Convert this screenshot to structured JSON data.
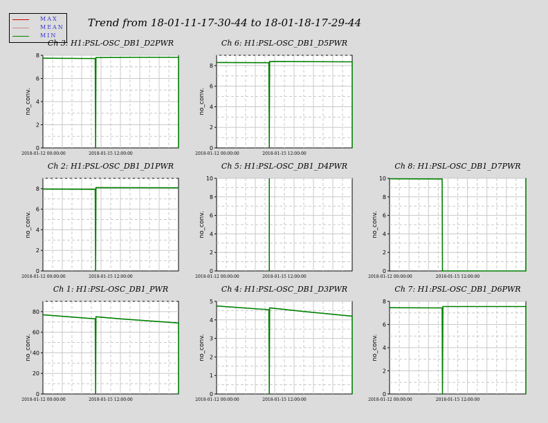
{
  "title": "Trend from 18-01-11-17-30-44 to 18-01-18-17-29-44",
  "legend": [
    {
      "label": "MAX",
      "color": "#cc0000"
    },
    {
      "label": "MEAN",
      "color": "#cc8888"
    },
    {
      "label": "MIN",
      "color": "#008000"
    }
  ],
  "colors": {
    "background": "#dcdcdc",
    "plot_bg": "#ffffff",
    "min_line": "#008000",
    "max_line": "#cc0000",
    "grid": "#c8c8c8"
  },
  "chart_data": [
    {
      "type": "line",
      "title": "Ch 3: H1:PSL-OSC_DB1_D2PWR",
      "ylabel": "no_conv.",
      "ylim": [
        0,
        8
      ],
      "yticks": [
        0,
        2,
        4,
        6,
        8
      ],
      "xticks": [
        "2018-01-12 00:00:00",
        "2018-01-15 12:00:00"
      ],
      "x_range_days": [
        0,
        7
      ],
      "series": [
        {
          "values": [
            [
              0,
              7.75
            ],
            [
              2.7,
              7.72
            ],
            [
              2.72,
              0
            ],
            [
              2.74,
              7.8
            ],
            [
              4.8,
              7.82
            ],
            [
              7,
              7.82
            ],
            [
              7,
              0
            ]
          ]
        }
      ]
    },
    {
      "type": "line",
      "title": "Ch 6: H1:PSL-OSC_DB1_D5PWR",
      "ylabel": "no_conv.",
      "ylim": [
        0,
        9
      ],
      "yticks": [
        0,
        2,
        4,
        6,
        8
      ],
      "xticks": [
        "2018-01-12 00:00:00",
        "2018-01-15 12:00:00"
      ],
      "x_range_days": [
        0,
        7
      ],
      "series": [
        {
          "values": [
            [
              0,
              8.3
            ],
            [
              2.7,
              8.28
            ],
            [
              2.72,
              0
            ],
            [
              2.74,
              8.4
            ],
            [
              7,
              8.36
            ],
            [
              7,
              0
            ]
          ]
        }
      ]
    },
    {
      "type": "line",
      "title": "Ch 2: H1:PSL-OSC_DB1_D1PWR",
      "ylabel": "no_conv.",
      "ylim": [
        0,
        9
      ],
      "yticks": [
        0,
        2,
        4,
        6,
        8
      ],
      "xticks": [
        "2018-01-12 00:00:00",
        "2018-01-15 12:00:00"
      ],
      "x_range_days": [
        0,
        7
      ],
      "series": [
        {
          "values": [
            [
              0,
              7.95
            ],
            [
              2.7,
              7.93
            ],
            [
              2.72,
              0
            ],
            [
              2.74,
              8.1
            ],
            [
              7,
              8.08
            ]
          ]
        }
      ]
    },
    {
      "type": "line",
      "title": "Ch 5: H1:PSL-OSC_DB1_D4PWR",
      "ylabel": "no_conv.",
      "ylim": [
        0,
        10
      ],
      "yticks": [
        0,
        2,
        4,
        6,
        8,
        10
      ],
      "xticks": [
        "2018-01-12 00:00:00",
        "2018-01-15 12:00:00"
      ],
      "x_range_days": [
        0,
        7
      ],
      "series": [
        {
          "values": [
            [
              2.72,
              10
            ],
            [
              2.72,
              0
            ]
          ]
        }
      ]
    },
    {
      "type": "line",
      "title": "Ch 8: H1:PSL-OSC_DB1_D7PWR",
      "ylabel": "no_conv.",
      "ylim": [
        0,
        10
      ],
      "yticks": [
        0,
        2,
        4,
        6,
        8,
        10
      ],
      "xticks": [
        "2018-01-12 00:00:00",
        "2018-01-15 12:00:00"
      ],
      "x_range_days": [
        0,
        7
      ],
      "series": [
        {
          "values": [
            [
              0,
              9.95
            ],
            [
              2.7,
              9.93
            ],
            [
              2.72,
              0
            ],
            [
              7,
              0
            ],
            [
              7,
              10
            ]
          ]
        }
      ]
    },
    {
      "type": "line",
      "title": "Ch 1: H1:PSL-OSC_DB1_PWR",
      "ylabel": "no_conv.",
      "ylim": [
        0,
        90
      ],
      "yticks": [
        0,
        20,
        40,
        60,
        80
      ],
      "xticks": [
        "2018-01-12 00:00:00",
        "2018-01-15 12:00:00"
      ],
      "x_range_days": [
        0,
        7
      ],
      "series": [
        {
          "values": [
            [
              0,
              77
            ],
            [
              2.7,
              73
            ],
            [
              2.72,
              0
            ],
            [
              2.74,
              75
            ],
            [
              4,
              73
            ],
            [
              5.5,
              71
            ],
            [
              7,
              69
            ],
            [
              7,
              0
            ]
          ]
        }
      ]
    },
    {
      "type": "line",
      "title": "Ch 4: H1:PSL-OSC_DB1_D3PWR",
      "ylabel": "no_conv.",
      "ylim": [
        0,
        5
      ],
      "yticks": [
        0,
        1,
        2,
        3,
        4,
        5
      ],
      "xticks": [
        "2018-01-12 00:00:00",
        "2018-01-15 12:00:00"
      ],
      "x_range_days": [
        0,
        7
      ],
      "series": [
        {
          "values": [
            [
              0,
              4.75
            ],
            [
              2.7,
              4.55
            ],
            [
              2.72,
              0
            ],
            [
              2.74,
              4.65
            ],
            [
              4.5,
              4.45
            ],
            [
              7,
              4.2
            ],
            [
              7,
              0
            ]
          ]
        }
      ]
    },
    {
      "type": "line",
      "title": "Ch 7: H1:PSL-OSC_DB1_D6PWR",
      "ylabel": "no_conv.",
      "ylim": [
        0,
        8
      ],
      "yticks": [
        0,
        2,
        4,
        6,
        8
      ],
      "xticks": [
        "2018-01-12 00:00:00",
        "2018-01-15 12:00:00"
      ],
      "x_range_days": [
        0,
        7
      ],
      "series": [
        {
          "values": [
            [
              0,
              7.45
            ],
            [
              2.7,
              7.43
            ],
            [
              2.72,
              0
            ],
            [
              2.74,
              7.55
            ],
            [
              7,
              7.55
            ],
            [
              7,
              0
            ]
          ]
        }
      ]
    }
  ]
}
